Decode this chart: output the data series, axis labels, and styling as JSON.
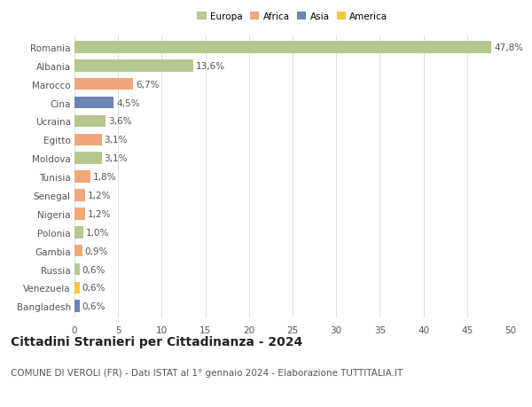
{
  "categories": [
    "Romania",
    "Albania",
    "Marocco",
    "Cina",
    "Ucraina",
    "Egitto",
    "Moldova",
    "Tunisia",
    "Senegal",
    "Nigeria",
    "Polonia",
    "Gambia",
    "Russia",
    "Venezuela",
    "Bangladesh"
  ],
  "values": [
    47.8,
    13.6,
    6.7,
    4.5,
    3.6,
    3.1,
    3.1,
    1.8,
    1.2,
    1.2,
    1.0,
    0.9,
    0.6,
    0.6,
    0.6
  ],
  "labels": [
    "47,8%",
    "13,6%",
    "6,7%",
    "4,5%",
    "3,6%",
    "3,1%",
    "3,1%",
    "1,8%",
    "1,2%",
    "1,2%",
    "1,0%",
    "0,9%",
    "0,6%",
    "0,6%",
    "0,6%"
  ],
  "colors": [
    "#b5c98e",
    "#b5c98e",
    "#f0a87a",
    "#6b85b5",
    "#b5c98e",
    "#f0a87a",
    "#b5c98e",
    "#f0a87a",
    "#f0a87a",
    "#f0a87a",
    "#b5c98e",
    "#f0a87a",
    "#b5c98e",
    "#f5c842",
    "#6b85b5"
  ],
  "legend_labels": [
    "Europa",
    "Africa",
    "Asia",
    "America"
  ],
  "legend_colors": [
    "#b5c98e",
    "#f0a87a",
    "#6b85b5",
    "#f5c842"
  ],
  "title": "Cittadini Stranieri per Cittadinanza - 2024",
  "subtitle": "COMUNE DI VEROLI (FR) - Dati ISTAT al 1° gennaio 2024 - Elaborazione TUTTITALIA.IT",
  "xlim": [
    0,
    50
  ],
  "xticks": [
    0,
    5,
    10,
    15,
    20,
    25,
    30,
    35,
    40,
    45,
    50
  ],
  "bg_color": "#ffffff",
  "grid_color": "#dddddd",
  "bar_height": 0.65,
  "label_fontsize": 7.5,
  "title_fontsize": 10,
  "subtitle_fontsize": 7.5,
  "tick_fontsize": 7.5
}
